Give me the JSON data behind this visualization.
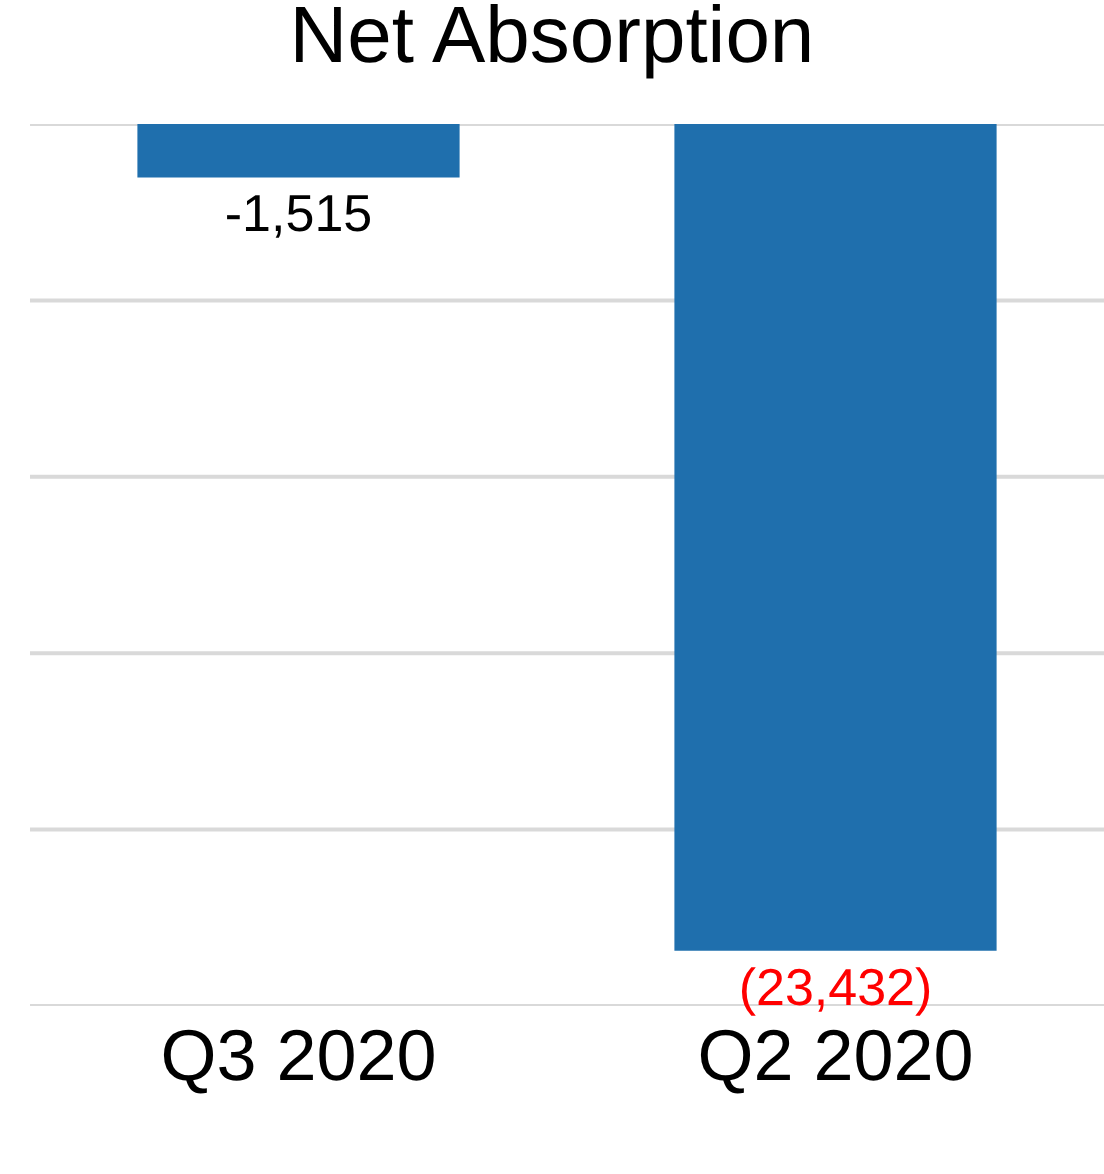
{
  "chart_data": {
    "type": "bar",
    "title": "Net Absorption",
    "categories": [
      "Q3 2020",
      "Q2 2020"
    ],
    "values": [
      -1515,
      -23432
    ],
    "value_labels": [
      "-1,515",
      "(23,432)"
    ],
    "color": "#1f6fad",
    "ylim": [
      -25000,
      0
    ],
    "yticks": [
      {
        "value": -25000,
        "label": null
      },
      {
        "value": -20000,
        "label": null
      },
      {
        "value": -15000,
        "label": null
      },
      {
        "value": -10000,
        "label": null
      },
      {
        "value": -5000,
        "label": null
      },
      {
        "value": 0,
        "label": null
      }
    ],
    "grid": "y",
    "tick_labels": "x",
    "legend": false
  }
}
